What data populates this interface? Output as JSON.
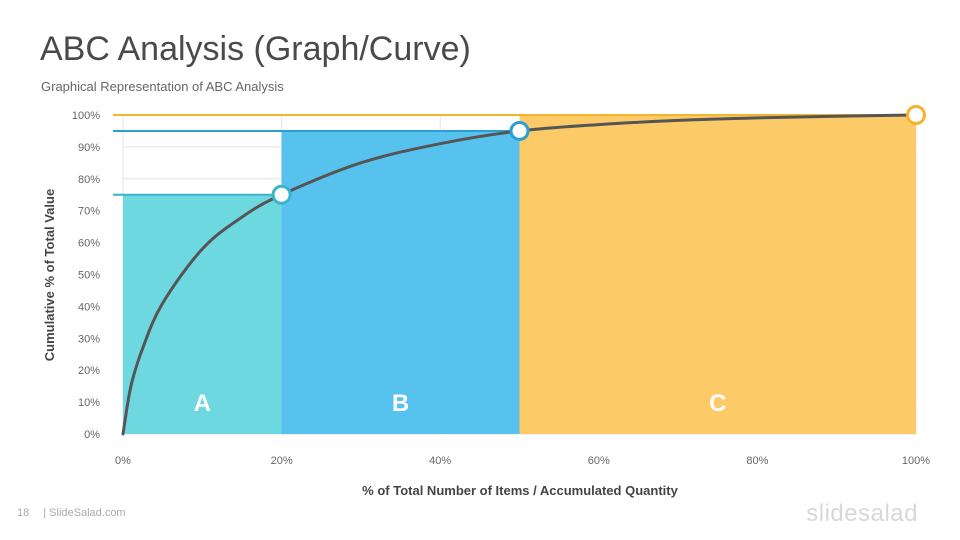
{
  "slide": {
    "title": "ABC Analysis (Graph/Curve)",
    "subtitle": "Graphical Representation of ABC Analysis",
    "page_number": "18",
    "source": "| SlideSalad.com",
    "brand": "slidesalad"
  },
  "colors": {
    "zone_a": "#66d6df",
    "zone_b": "#4fbfee",
    "zone_c": "#fcc860",
    "curve": "#555555",
    "marker_a": "#3bb4c8",
    "marker_b": "#2a9fd6",
    "marker_c": "#f5b32e",
    "grid": "#e4e4e4"
  },
  "chart_data": {
    "type": "area",
    "title": "",
    "xlabel": "% of Total Number of Items / Accumulated Quantity",
    "ylabel": "Cumulative % of Total Value",
    "xlim": [
      0,
      100
    ],
    "ylim": [
      0,
      100
    ],
    "x_ticks": [
      "0%",
      "20%",
      "40%",
      "60%",
      "80%",
      "100%"
    ],
    "y_ticks": [
      "0%",
      "10%",
      "20%",
      "30%",
      "40%",
      "50%",
      "60%",
      "70%",
      "80%",
      "90%",
      "100%"
    ],
    "grid": true,
    "zones": [
      {
        "label": "A",
        "x_start": 0,
        "x_end": 20,
        "y_value": 75
      },
      {
        "label": "B",
        "x_start": 20,
        "x_end": 50,
        "y_value": 95
      },
      {
        "label": "C",
        "x_start": 50,
        "x_end": 100,
        "y_value": 100
      }
    ],
    "curve": [
      [
        0,
        0
      ],
      [
        1,
        15
      ],
      [
        2.5,
        27
      ],
      [
        5,
        41
      ],
      [
        10,
        58
      ],
      [
        15,
        68
      ],
      [
        20,
        75
      ],
      [
        30,
        85
      ],
      [
        40,
        91
      ],
      [
        50,
        95
      ],
      [
        60,
        97
      ],
      [
        70,
        98.3
      ],
      [
        80,
        99.1
      ],
      [
        90,
        99.6
      ],
      [
        100,
        100
      ]
    ],
    "markers": [
      {
        "x": 20,
        "y": 75
      },
      {
        "x": 50,
        "y": 95
      },
      {
        "x": 100,
        "y": 100
      }
    ]
  }
}
